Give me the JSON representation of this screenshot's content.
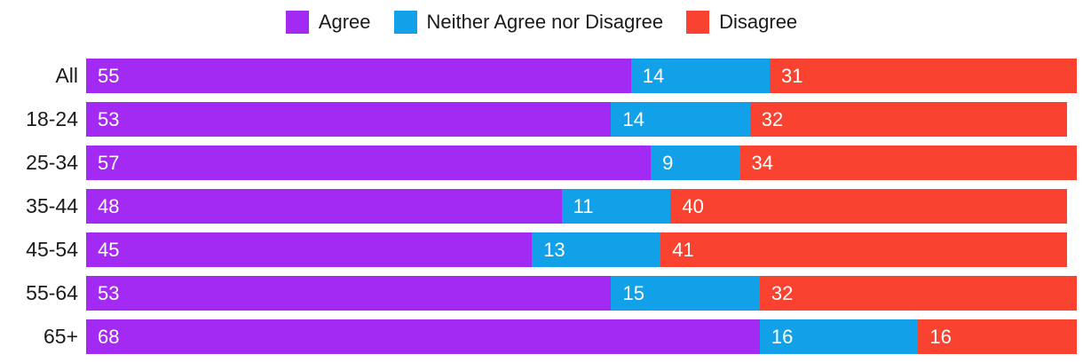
{
  "legend": {
    "items": [
      {
        "label": "Agree",
        "color": "#a22af2",
        "swatch_icon": "square-swatch"
      },
      {
        "label": "Neither Agree nor Disagree",
        "color": "#12a1e8",
        "swatch_icon": "square-swatch"
      },
      {
        "label": "Disagree",
        "color": "#f94330",
        "swatch_icon": "square-swatch"
      }
    ]
  },
  "chart_data": {
    "type": "bar",
    "orientation": "horizontal",
    "stacked": true,
    "title": "",
    "xlabel": "",
    "ylabel": "",
    "xlim": [
      0,
      100
    ],
    "grid": false,
    "legend_position": "top-center",
    "value_labels": "inside segment start, white text",
    "categories": [
      "All",
      "18-24",
      "25-34",
      "35-44",
      "45-54",
      "55-64",
      "65+"
    ],
    "series": [
      {
        "name": "Agree",
        "color": "#a22af2",
        "values": [
          55,
          53,
          57,
          48,
          45,
          53,
          68
        ]
      },
      {
        "name": "Neither Agree nor Disagree",
        "color": "#12a1e8",
        "values": [
          14,
          14,
          9,
          11,
          13,
          15,
          16
        ]
      },
      {
        "name": "Disagree",
        "color": "#f94330",
        "values": [
          31,
          32,
          34,
          40,
          41,
          32,
          16
        ]
      }
    ]
  },
  "colors": {
    "background": "#ffffff",
    "label_text": "#1a1a1a",
    "value_text": "#ffffff"
  }
}
